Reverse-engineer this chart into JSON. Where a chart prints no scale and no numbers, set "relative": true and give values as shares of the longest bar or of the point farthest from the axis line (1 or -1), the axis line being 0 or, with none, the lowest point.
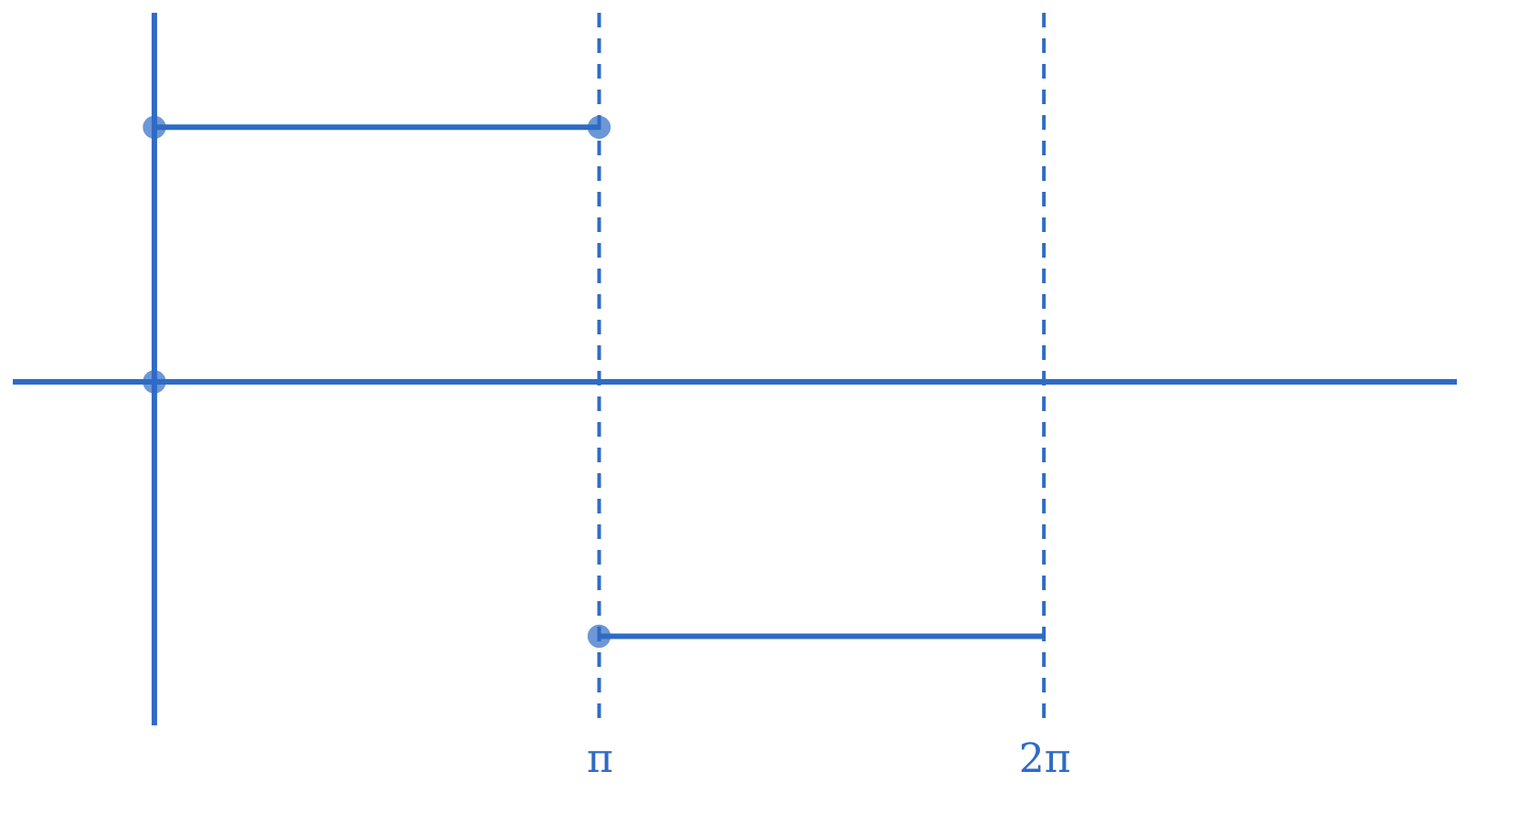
{
  "chart_data": {
    "type": "line",
    "relative": true,
    "marker": "none",
    "xlim": [
      -1.0,
      9.2
    ],
    "xticks": [
      {
        "value": 3.1416,
        "label": "π"
      },
      {
        "value": 6.2832,
        "label": "2π"
      }
    ],
    "grid": false,
    "series": [
      {
        "color": "#2f6bc4",
        "x": [
          0,
          3.1416
        ],
        "values": [
          1,
          1
        ]
      },
      {
        "color": "#2f6bc4",
        "x": [
          3.1416,
          6.2832
        ],
        "values": [
          -1,
          -1
        ]
      },
      {
        "type": "scatter",
        "marker": "circle",
        "color": "#2f6bc4",
        "x": [
          0,
          3.1416,
          0,
          3.1416
        ],
        "values": [
          1,
          1,
          0,
          -1
        ]
      }
    ],
    "ref_lines": [
      {
        "axis": "y",
        "value": 0,
        "line_style": "solid",
        "color": "#2f6bc4"
      },
      {
        "axis": "x",
        "value": 0,
        "line_style": "solid",
        "color": "#2f6bc4"
      },
      {
        "axis": "x",
        "value": 3.1416,
        "line_style": "dashed",
        "color": "#2f6bc4"
      },
      {
        "axis": "x",
        "value": 6.2832,
        "line_style": "dashed",
        "color": "#2f6bc4"
      }
    ]
  }
}
